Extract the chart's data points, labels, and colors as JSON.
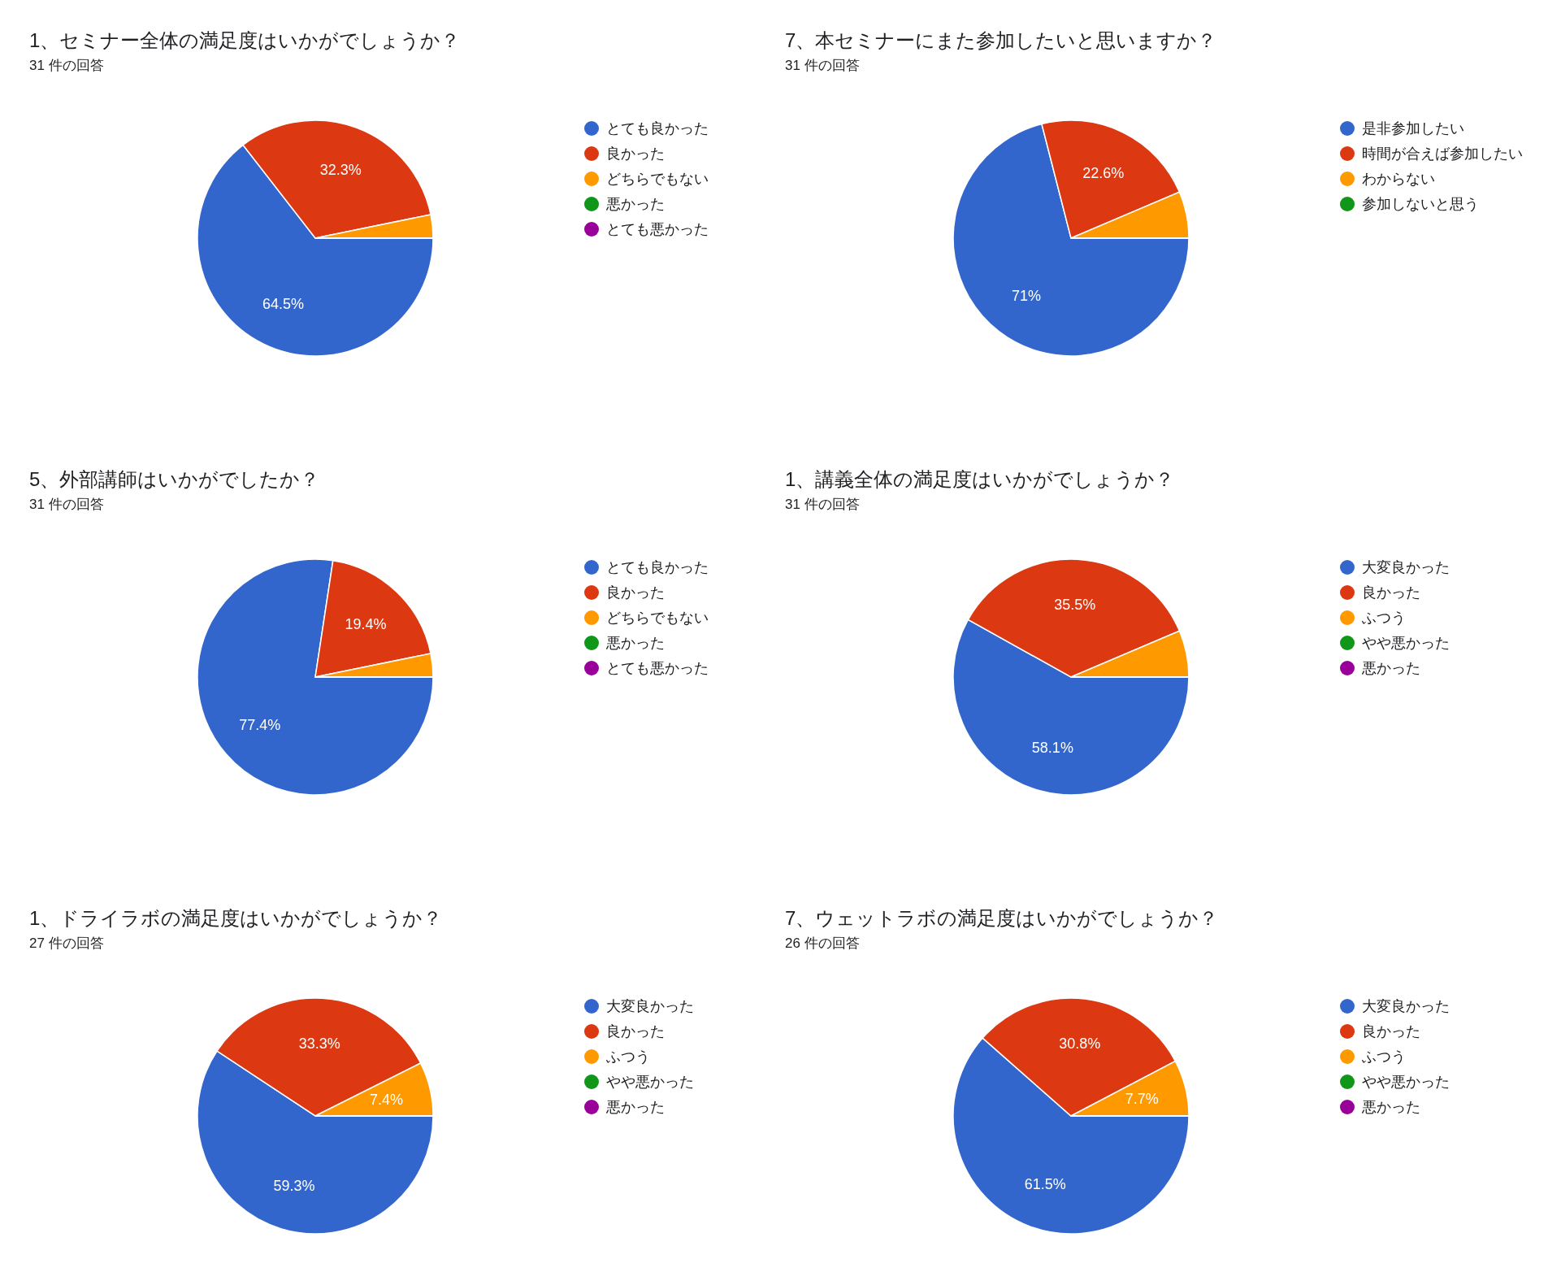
{
  "chart_data": [
    {
      "type": "pie",
      "title": "1、セミナー全体の満足度はいかがでしょうか？",
      "subtitle": "31 件の回答",
      "categories": [
        "とても良かった",
        "良かった",
        "どちらでもない",
        "悪かった",
        "とても悪かった"
      ],
      "values": [
        64.5,
        32.3,
        3.2,
        0,
        0
      ],
      "colors": [
        "#3366cc",
        "#dc3912",
        "#ff9900",
        "#109618",
        "#990099"
      ],
      "value_labels": [
        "64.5%",
        "32.3%",
        null,
        null,
        null
      ],
      "legend": "right"
    },
    {
      "type": "pie",
      "title": "7、本セミナーにまた参加したいと思いますか？",
      "subtitle": "31 件の回答",
      "categories": [
        "是非参加したい",
        "時間が合えば参加したい",
        "わからない",
        "参加しないと思う"
      ],
      "values": [
        71,
        22.6,
        6.4,
        0
      ],
      "colors": [
        "#3366cc",
        "#dc3912",
        "#ff9900",
        "#109618"
      ],
      "value_labels": [
        "71%",
        "22.6%",
        null,
        null
      ],
      "legend": "right"
    },
    {
      "type": "pie",
      "title": "5、外部講師はいかがでしたか？",
      "subtitle": "31 件の回答",
      "categories": [
        "とても良かった",
        "良かった",
        "どちらでもない",
        "悪かった",
        "とても悪かった"
      ],
      "values": [
        77.4,
        19.4,
        3.2,
        0,
        0
      ],
      "colors": [
        "#3366cc",
        "#dc3912",
        "#ff9900",
        "#109618",
        "#990099"
      ],
      "value_labels": [
        "77.4%",
        "19.4%",
        null,
        null,
        null
      ],
      "legend": "right"
    },
    {
      "type": "pie",
      "title": "1、講義全体の満足度はいかがでしょうか？",
      "subtitle": "31 件の回答",
      "categories": [
        "大変良かった",
        "良かった",
        "ふつう",
        "やや悪かった",
        "悪かった"
      ],
      "values": [
        58.1,
        35.5,
        6.4,
        0,
        0
      ],
      "colors": [
        "#3366cc",
        "#dc3912",
        "#ff9900",
        "#109618",
        "#990099"
      ],
      "value_labels": [
        "58.1%",
        "35.5%",
        null,
        null,
        null
      ],
      "legend": "right"
    },
    {
      "type": "pie",
      "title": "1、ドライラボの満足度はいかがでしょうか？",
      "subtitle": "27 件の回答",
      "categories": [
        "大変良かった",
        "良かった",
        "ふつう",
        "やや悪かった",
        "悪かった"
      ],
      "values": [
        59.3,
        33.3,
        7.4,
        0,
        0
      ],
      "colors": [
        "#3366cc",
        "#dc3912",
        "#ff9900",
        "#109618",
        "#990099"
      ],
      "value_labels": [
        "59.3%",
        "33.3%",
        "7.4%",
        null,
        null
      ],
      "legend": "right"
    },
    {
      "type": "pie",
      "title": "7、ウェットラボの満足度はいかがでしょうか？",
      "subtitle": "26 件の回答",
      "categories": [
        "大変良かった",
        "良かった",
        "ふつう",
        "やや悪かった",
        "悪かった"
      ],
      "values": [
        61.5,
        30.8,
        7.7,
        0,
        0
      ],
      "colors": [
        "#3366cc",
        "#dc3912",
        "#ff9900",
        "#109618",
        "#990099"
      ],
      "value_labels": [
        "61.5%",
        "30.8%",
        "7.7%",
        null,
        null
      ],
      "legend": "right"
    }
  ]
}
